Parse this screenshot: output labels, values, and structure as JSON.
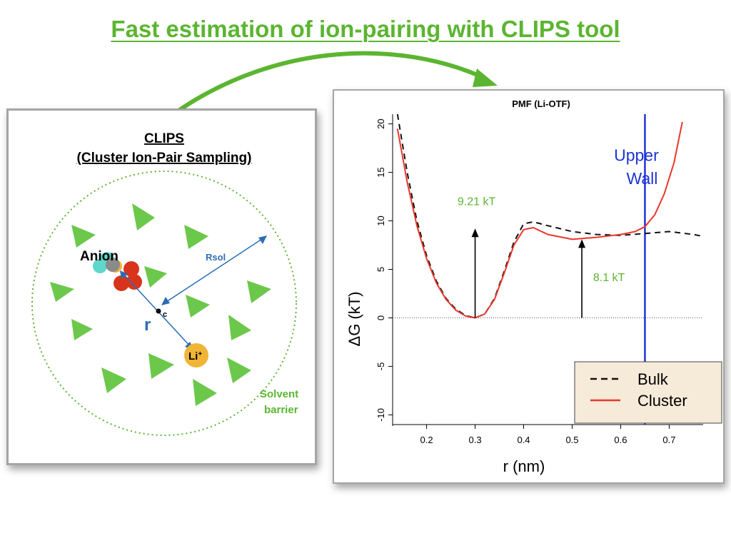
{
  "slide_title": "Fast estimation of ion-pairing with CLIPS tool",
  "colors": {
    "accent_green": "#5cb531",
    "triangle_green": "#6cc84b",
    "blue": "#2a6db5",
    "bulk": "#111111",
    "cluster": "#e8372c",
    "wall": "#1e34d6",
    "annot_green": "#5cb531",
    "li_orange": "#f0b535",
    "anion_red": "#d8341c",
    "anion_cyan": "#5fd7cc",
    "anion_gray": "#8a8a8a"
  },
  "diagram": {
    "title": "CLIPS",
    "subtitle": "(Cluster Ion-Pair Sampling)",
    "anion_label": "Anion",
    "li_label": "Li",
    "li_charge": "+",
    "rsol_label": "Rsol",
    "center_label": "c",
    "r_label": "r",
    "solvent_label_1": "Solvent",
    "solvent_label_2": "barrier"
  },
  "chart_data": {
    "type": "line",
    "title": "PMF (Li-OTF)",
    "xlabel": "r (nm)",
    "ylabel": "ΔG (kT)",
    "xlim": [
      0.13,
      0.77
    ],
    "ylim": [
      -11,
      21
    ],
    "xticks": [
      "0.2",
      "0.3",
      "0.4",
      "0.5",
      "0.6",
      "0.7"
    ],
    "yticks": [
      "-10",
      "-5",
      "0",
      "5",
      "10",
      "15",
      "20"
    ],
    "series": [
      {
        "name": "Bulk",
        "style": "dashed",
        "x": [
          0.14,
          0.16,
          0.18,
          0.2,
          0.22,
          0.24,
          0.26,
          0.28,
          0.3,
          0.32,
          0.34,
          0.36,
          0.38,
          0.4,
          0.42,
          0.45,
          0.5,
          0.55,
          0.6,
          0.65,
          0.7,
          0.75,
          0.77
        ],
        "y": [
          21.0,
          15.0,
          10.0,
          6.4,
          3.8,
          2.0,
          0.9,
          0.25,
          0.0,
          0.4,
          2.0,
          4.8,
          7.8,
          9.7,
          9.9,
          9.5,
          8.9,
          8.6,
          8.5,
          8.7,
          8.9,
          8.6,
          8.4
        ]
      },
      {
        "name": "Cluster",
        "style": "solid",
        "x": [
          0.14,
          0.16,
          0.18,
          0.2,
          0.22,
          0.24,
          0.26,
          0.28,
          0.3,
          0.32,
          0.34,
          0.36,
          0.38,
          0.4,
          0.42,
          0.45,
          0.5,
          0.55,
          0.6,
          0.63,
          0.65,
          0.67,
          0.69,
          0.71,
          0.727
        ],
        "y": [
          19.5,
          14.0,
          9.5,
          6.1,
          3.6,
          1.9,
          0.8,
          0.2,
          0.0,
          0.4,
          1.9,
          4.6,
          7.5,
          9.1,
          9.3,
          8.6,
          8.1,
          8.3,
          8.6,
          8.9,
          9.4,
          10.6,
          12.8,
          16.0,
          20.2
        ]
      }
    ],
    "upper_wall_x": 0.65,
    "upper_wall_label_1": "Upper",
    "upper_wall_label_2": "Wall",
    "annotations": [
      {
        "label": "9.21 kT",
        "x": 0.3,
        "y_from": 0,
        "y_to": 9.21
      },
      {
        "label": "8.1 kT",
        "x": 0.52,
        "y_from": 0,
        "y_to": 8.1
      }
    ],
    "zero_line": true,
    "legend": {
      "placement": "bottom-right",
      "entries": [
        "Bulk",
        "Cluster"
      ]
    }
  }
}
